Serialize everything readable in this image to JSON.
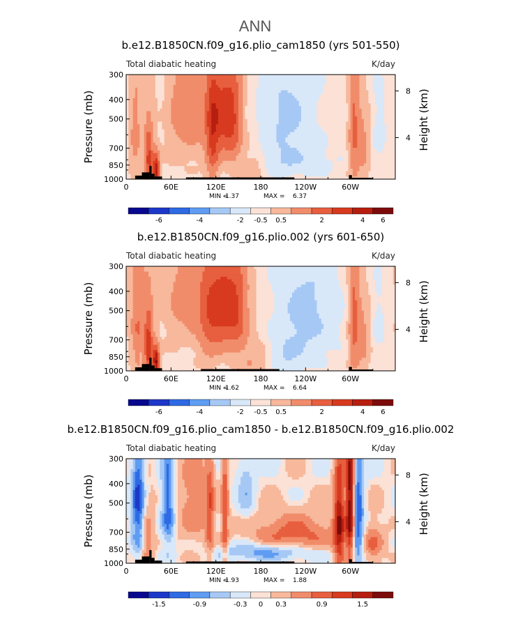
{
  "figure": {
    "season_title": "ANN"
  },
  "palettes": {
    "full": [
      "#08088f",
      "#1d38c9",
      "#2e6ae3",
      "#5f9cf2",
      "#a6c8f5",
      "#d8e8f9",
      "#fbe1d6",
      "#f7b89c",
      "#f18c6b",
      "#e75f3f",
      "#d73a1f",
      "#b61e10",
      "#7d0b0b"
    ],
    "diff": [
      "#08088f",
      "#1d38c9",
      "#2e6ae3",
      "#5f9cf2",
      "#a6c8f5",
      "#d8e8f9",
      "#fbe1d6",
      "#f7b89c",
      "#f18c6b",
      "#e75f3f",
      "#d73a1f",
      "#b61e10",
      "#7d0b0b"
    ]
  },
  "chart_data": [
    {
      "type": "heatmap",
      "title": "b.e12.B1850CN.f09_g16.plio_cam1850 (yrs 501-550)",
      "left_label": "Total diabatic heating",
      "units": "K/day",
      "ylabel": "Pressure (mb)",
      "ylabel_right": "Height (km)",
      "x_ticks": [
        "0",
        "60E",
        "120E",
        "180",
        "120W",
        "60W"
      ],
      "x_tick_values": [
        0,
        60,
        120,
        180,
        240,
        300
      ],
      "xlim": [
        0,
        360
      ],
      "y_ticks": [
        "300",
        "400",
        "500",
        "700",
        "850",
        "1000"
      ],
      "y_tick_values": [
        300,
        400,
        500,
        700,
        850,
        1000
      ],
      "ylim": [
        1000,
        300
      ],
      "height_ticks": [
        "8",
        "4"
      ],
      "height_tick_values": [
        8,
        4
      ],
      "min_label": "MIN =",
      "min": "-1.37",
      "max_label": "MAX =",
      "max": "6.37",
      "palette": "full",
      "colorbar_labels": [
        "-6",
        "-4",
        "-2",
        "-0.5",
        "0.5",
        "2",
        "4",
        "6"
      ],
      "features": [
        {
          "lon": 12,
          "w": 5,
          "p": 620,
          "pw": 260,
          "a": 1.3
        },
        {
          "lon": 30,
          "w": 4,
          "p": 800,
          "pw": 200,
          "a": 3.2
        },
        {
          "lon": 40,
          "w": 3,
          "p": 900,
          "pw": 110,
          "a": 4.8
        },
        {
          "lon": 48,
          "w": 8,
          "p": 450,
          "pw": 140,
          "a": -0.7
        },
        {
          "lon": 85,
          "w": 35,
          "p": 450,
          "pw": 220,
          "a": 1.5
        },
        {
          "lon": 115,
          "w": 6,
          "p": 600,
          "pw": 300,
          "a": 2.5
        },
        {
          "lon": 130,
          "w": 10,
          "p": 480,
          "pw": 200,
          "a": 2.6
        },
        {
          "lon": 145,
          "w": 8,
          "p": 500,
          "pw": 220,
          "a": 2.0
        },
        {
          "lon": 170,
          "w": 12,
          "p": 900,
          "pw": 150,
          "a": 0.9
        },
        {
          "lon": 215,
          "w": 25,
          "p": 480,
          "pw": 220,
          "a": -1.2
        },
        {
          "lon": 220,
          "w": 40,
          "p": 820,
          "pw": 100,
          "a": -0.7
        },
        {
          "lon": 305,
          "w": 5,
          "p": 550,
          "pw": 320,
          "a": 2.2
        },
        {
          "lon": 318,
          "w": 6,
          "p": 700,
          "pw": 250,
          "a": 1.2
        },
        {
          "lon": 338,
          "w": 8,
          "p": 550,
          "pw": 200,
          "a": -0.5
        }
      ],
      "topography": [
        {
          "lon0": 12,
          "lon1": 21,
          "p": 960
        },
        {
          "lon0": 21,
          "lon1": 31,
          "p": 925
        },
        {
          "lon0": 31,
          "lon1": 34,
          "p": 860
        },
        {
          "lon0": 34,
          "lon1": 38,
          "p": 940
        },
        {
          "lon0": 38,
          "lon1": 48,
          "p": 970
        },
        {
          "lon0": 80,
          "lon1": 225,
          "p": 980
        },
        {
          "lon0": 298,
          "lon1": 302,
          "p": 955
        },
        {
          "lon0": 302,
          "lon1": 330,
          "p": 985
        }
      ]
    },
    {
      "type": "heatmap",
      "title": "b.e12.B1850CN.f09_g16.plio.002 (yrs 601-650)",
      "left_label": "Total diabatic heating",
      "units": "K/day",
      "ylabel": "Pressure (mb)",
      "ylabel_right": "Height (km)",
      "x_ticks": [
        "0",
        "60E",
        "120E",
        "180",
        "120W",
        "60W"
      ],
      "x_tick_values": [
        0,
        60,
        120,
        180,
        240,
        300
      ],
      "xlim": [
        0,
        360
      ],
      "y_ticks": [
        "300",
        "400",
        "500",
        "700",
        "850",
        "1000"
      ],
      "y_tick_values": [
        300,
        400,
        500,
        700,
        850,
        1000
      ],
      "ylim": [
        1000,
        300
      ],
      "height_ticks": [
        "8",
        "4"
      ],
      "height_tick_values": [
        8,
        4
      ],
      "min_label": "MIN =",
      "min": "-1.62",
      "max_label": "MAX =",
      "max": "6.64",
      "palette": "full",
      "colorbar_labels": [
        "-6",
        "-4",
        "-2",
        "-0.5",
        "0.5",
        "2",
        "4",
        "6"
      ],
      "features": [
        {
          "lon": 15,
          "w": 6,
          "p": 600,
          "pw": 280,
          "a": 1.7
        },
        {
          "lon": 30,
          "w": 4,
          "p": 780,
          "pw": 220,
          "a": 3.4
        },
        {
          "lon": 40,
          "w": 3,
          "p": 900,
          "pw": 110,
          "a": 5.0
        },
        {
          "lon": 48,
          "w": 8,
          "p": 450,
          "pw": 140,
          "a": -0.6
        },
        {
          "lon": 85,
          "w": 45,
          "p": 430,
          "pw": 200,
          "a": 1.3
        },
        {
          "lon": 110,
          "w": 10,
          "p": 550,
          "pw": 250,
          "a": 1.5
        },
        {
          "lon": 130,
          "w": 12,
          "p": 480,
          "pw": 200,
          "a": 2.6
        },
        {
          "lon": 150,
          "w": 10,
          "p": 500,
          "pw": 200,
          "a": 2.0
        },
        {
          "lon": 170,
          "w": 14,
          "p": 900,
          "pw": 150,
          "a": 0.9
        },
        {
          "lon": 240,
          "w": 28,
          "p": 520,
          "pw": 230,
          "a": -1.3
        },
        {
          "lon": 215,
          "w": 15,
          "p": 850,
          "pw": 120,
          "a": -0.8
        },
        {
          "lon": 305,
          "w": 5,
          "p": 560,
          "pw": 300,
          "a": 2.4
        },
        {
          "lon": 318,
          "w": 6,
          "p": 700,
          "pw": 250,
          "a": 1.2
        },
        {
          "lon": 338,
          "w": 8,
          "p": 550,
          "pw": 200,
          "a": -0.5
        }
      ],
      "topography": [
        {
          "lon0": 12,
          "lon1": 21,
          "p": 960
        },
        {
          "lon0": 21,
          "lon1": 31,
          "p": 925
        },
        {
          "lon0": 31,
          "lon1": 34,
          "p": 860
        },
        {
          "lon0": 34,
          "lon1": 38,
          "p": 940
        },
        {
          "lon0": 38,
          "lon1": 48,
          "p": 970
        },
        {
          "lon0": 100,
          "lon1": 205,
          "p": 980
        },
        {
          "lon0": 298,
          "lon1": 302,
          "p": 955
        },
        {
          "lon0": 302,
          "lon1": 330,
          "p": 985
        }
      ]
    },
    {
      "type": "heatmap",
      "title": "b.e12.B1850CN.f09_g16.plio_cam1850 - b.e12.B1850CN.f09_g16.plio.002",
      "left_label": "Total diabatic heating",
      "units": "K/day",
      "ylabel": "Pressure (mb)",
      "ylabel_right": "Height (km)",
      "x_ticks": [
        "0",
        "60E",
        "120E",
        "180",
        "120W",
        "60W"
      ],
      "x_tick_values": [
        0,
        60,
        120,
        180,
        240,
        300
      ],
      "xlim": [
        0,
        360
      ],
      "y_ticks": [
        "300",
        "400",
        "500",
        "700",
        "850",
        "1000"
      ],
      "y_tick_values": [
        300,
        400,
        500,
        700,
        850,
        1000
      ],
      "ylim": [
        1000,
        300
      ],
      "height_ticks": [
        "8",
        "4"
      ],
      "height_tick_values": [
        8,
        4
      ],
      "min_label": "MIN =",
      "min": "-1.93",
      "max_label": "MAX =",
      "max": "1.88",
      "palette": "diff",
      "colorbar_labels": [
        "-1.5",
        "-0.9",
        "-0.3",
        "0",
        "0.3",
        "0.9",
        "1.5"
      ],
      "features": [
        {
          "lon": 16,
          "w": 6,
          "p": 500,
          "pw": 250,
          "a": -1.3
        },
        {
          "lon": 28,
          "w": 6,
          "p": 750,
          "pw": 200,
          "a": 0.5
        },
        {
          "lon": 56,
          "w": 6,
          "p": 500,
          "pw": 220,
          "a": -1.1
        },
        {
          "lon": 90,
          "w": 15,
          "p": 500,
          "pw": 200,
          "a": 0.5
        },
        {
          "lon": 112,
          "w": 4,
          "p": 550,
          "pw": 300,
          "a": 0.7
        },
        {
          "lon": 132,
          "w": 3,
          "p": 550,
          "pw": 300,
          "a": 0.9
        },
        {
          "lon": 160,
          "w": 8,
          "p": 420,
          "pw": 120,
          "a": -0.5
        },
        {
          "lon": 225,
          "w": 40,
          "p": 720,
          "pw": 110,
          "a": 0.75
        },
        {
          "lon": 190,
          "w": 45,
          "p": 880,
          "pw": 60,
          "a": -0.8
        },
        {
          "lon": 285,
          "w": 5,
          "p": 620,
          "pw": 300,
          "a": 1.4
        },
        {
          "lon": 300,
          "w": 4,
          "p": 500,
          "pw": 300,
          "a": 1.9
        },
        {
          "lon": 310,
          "w": 6,
          "p": 600,
          "pw": 300,
          "a": -1.2
        },
        {
          "lon": 330,
          "w": 10,
          "p": 800,
          "pw": 130,
          "a": 0.6
        }
      ],
      "topography": [
        {
          "lon0": 12,
          "lon1": 21,
          "p": 960
        },
        {
          "lon0": 21,
          "lon1": 31,
          "p": 925
        },
        {
          "lon0": 31,
          "lon1": 34,
          "p": 860
        },
        {
          "lon0": 34,
          "lon1": 38,
          "p": 940
        },
        {
          "lon0": 38,
          "lon1": 48,
          "p": 970
        },
        {
          "lon0": 80,
          "lon1": 225,
          "p": 980
        },
        {
          "lon0": 298,
          "lon1": 302,
          "p": 955
        },
        {
          "lon0": 302,
          "lon1": 330,
          "p": 985
        }
      ]
    }
  ]
}
